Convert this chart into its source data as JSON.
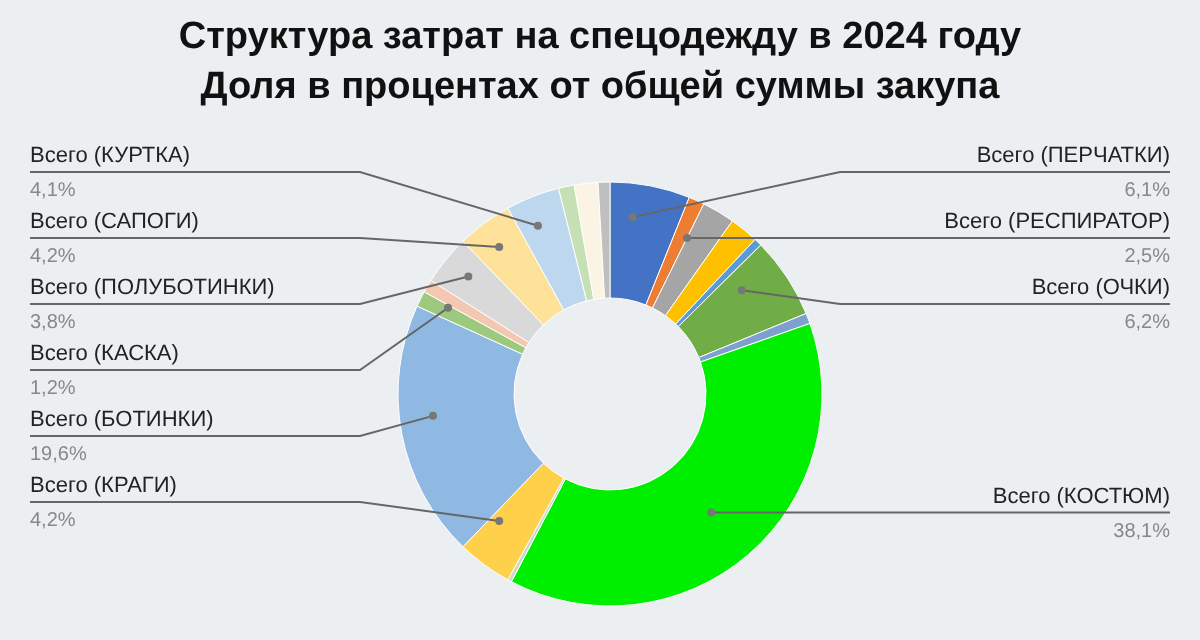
{
  "chart_data": {
    "type": "donut",
    "title": "Структура затрат на спецодежду в 2024 году",
    "subtitle": "Доля в процентах от общей суммы закупа",
    "categories": [
      "Всего (ПЕРЧАТКИ)",
      null,
      "Всего (РЕСПИРАТОР)",
      null,
      null,
      "Всего (ОЧКИ)",
      null,
      "Всего (КОСТЮМ)",
      null,
      "Всего (КРАГИ)",
      "Всего (БОТИНКИ)",
      "Всего (КАСКА)",
      null,
      "Всего (ПОЛУБОТИНКИ)",
      "Всего (САПОГИ)",
      "Всего (КУРТКА)",
      null,
      null,
      null
    ],
    "values": [
      6.1,
      1.2,
      2.5,
      2.2,
      0.6,
      6.2,
      0.8,
      38.1,
      0.3,
      4.2,
      19.6,
      1.2,
      1.0,
      3.8,
      4.2,
      4.1,
      1.2,
      1.8,
      0.9
    ],
    "value_labels": [
      "6,1%",
      null,
      "2,5%",
      null,
      null,
      "6,2%",
      null,
      "38,1%",
      null,
      "4,2%",
      "19,6%",
      "1,2%",
      null,
      "3,8%",
      "4,2%",
      "4,1%",
      null,
      null,
      null
    ],
    "colors": [
      "#4472c4",
      "#ed7d31",
      "#a5a5a5",
      "#ffc000",
      "#5b9bd5",
      "#70ad47",
      "#7f9fcf",
      "#00ee00",
      "#c9d9c9",
      "#ffd04a",
      "#8fb8e3",
      "#9dc97f",
      "#f4c7b0",
      "#d9d9d9",
      "#ffe29a",
      "#bdd7ee",
      "#c5e0b4",
      "#fbf3e4",
      "#bfbfbf"
    ]
  }
}
